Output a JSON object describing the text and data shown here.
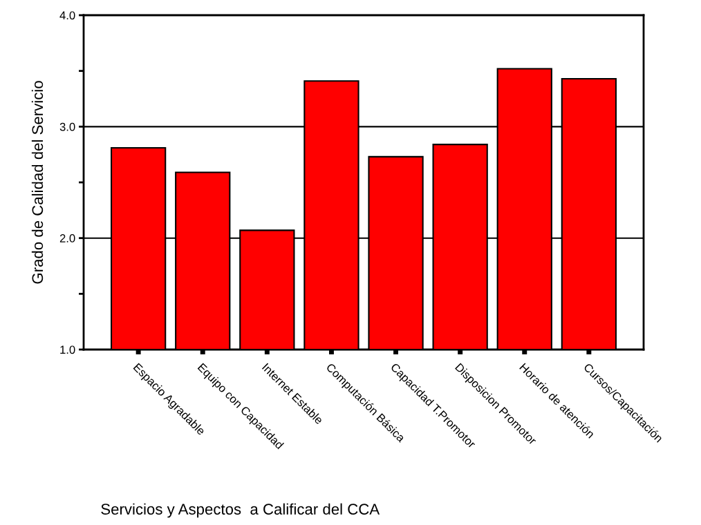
{
  "chart_data": {
    "type": "bar",
    "xlabel": "Servicios y Aspectos  a Calificar del CCA",
    "ylabel": "Grado de Calidad del Servicio",
    "categories": [
      "Espacio Agradable",
      "Equipo con Capacidad",
      "Internet Estable",
      "Computación Básica",
      "Capacidad T.Promotor",
      "Disposicion Promotor",
      "Horario de atención",
      "Cursos/Capacitación"
    ],
    "values": [
      2.81,
      2.59,
      2.07,
      3.41,
      2.73,
      2.84,
      3.52,
      3.43
    ],
    "color": "#ff0000",
    "ylim": [
      1.0,
      4.0
    ],
    "yticks": [
      {
        "value": 1.0,
        "label": "1.0"
      },
      {
        "value": 1.5,
        "label": null
      },
      {
        "value": 2.0,
        "label": "2.0"
      },
      {
        "value": 2.5,
        "label": null
      },
      {
        "value": 3.0,
        "label": "3.0"
      },
      {
        "value": 3.5,
        "label": null
      },
      {
        "value": 4.0,
        "label": "4.0"
      }
    ],
    "grid": "y"
  }
}
